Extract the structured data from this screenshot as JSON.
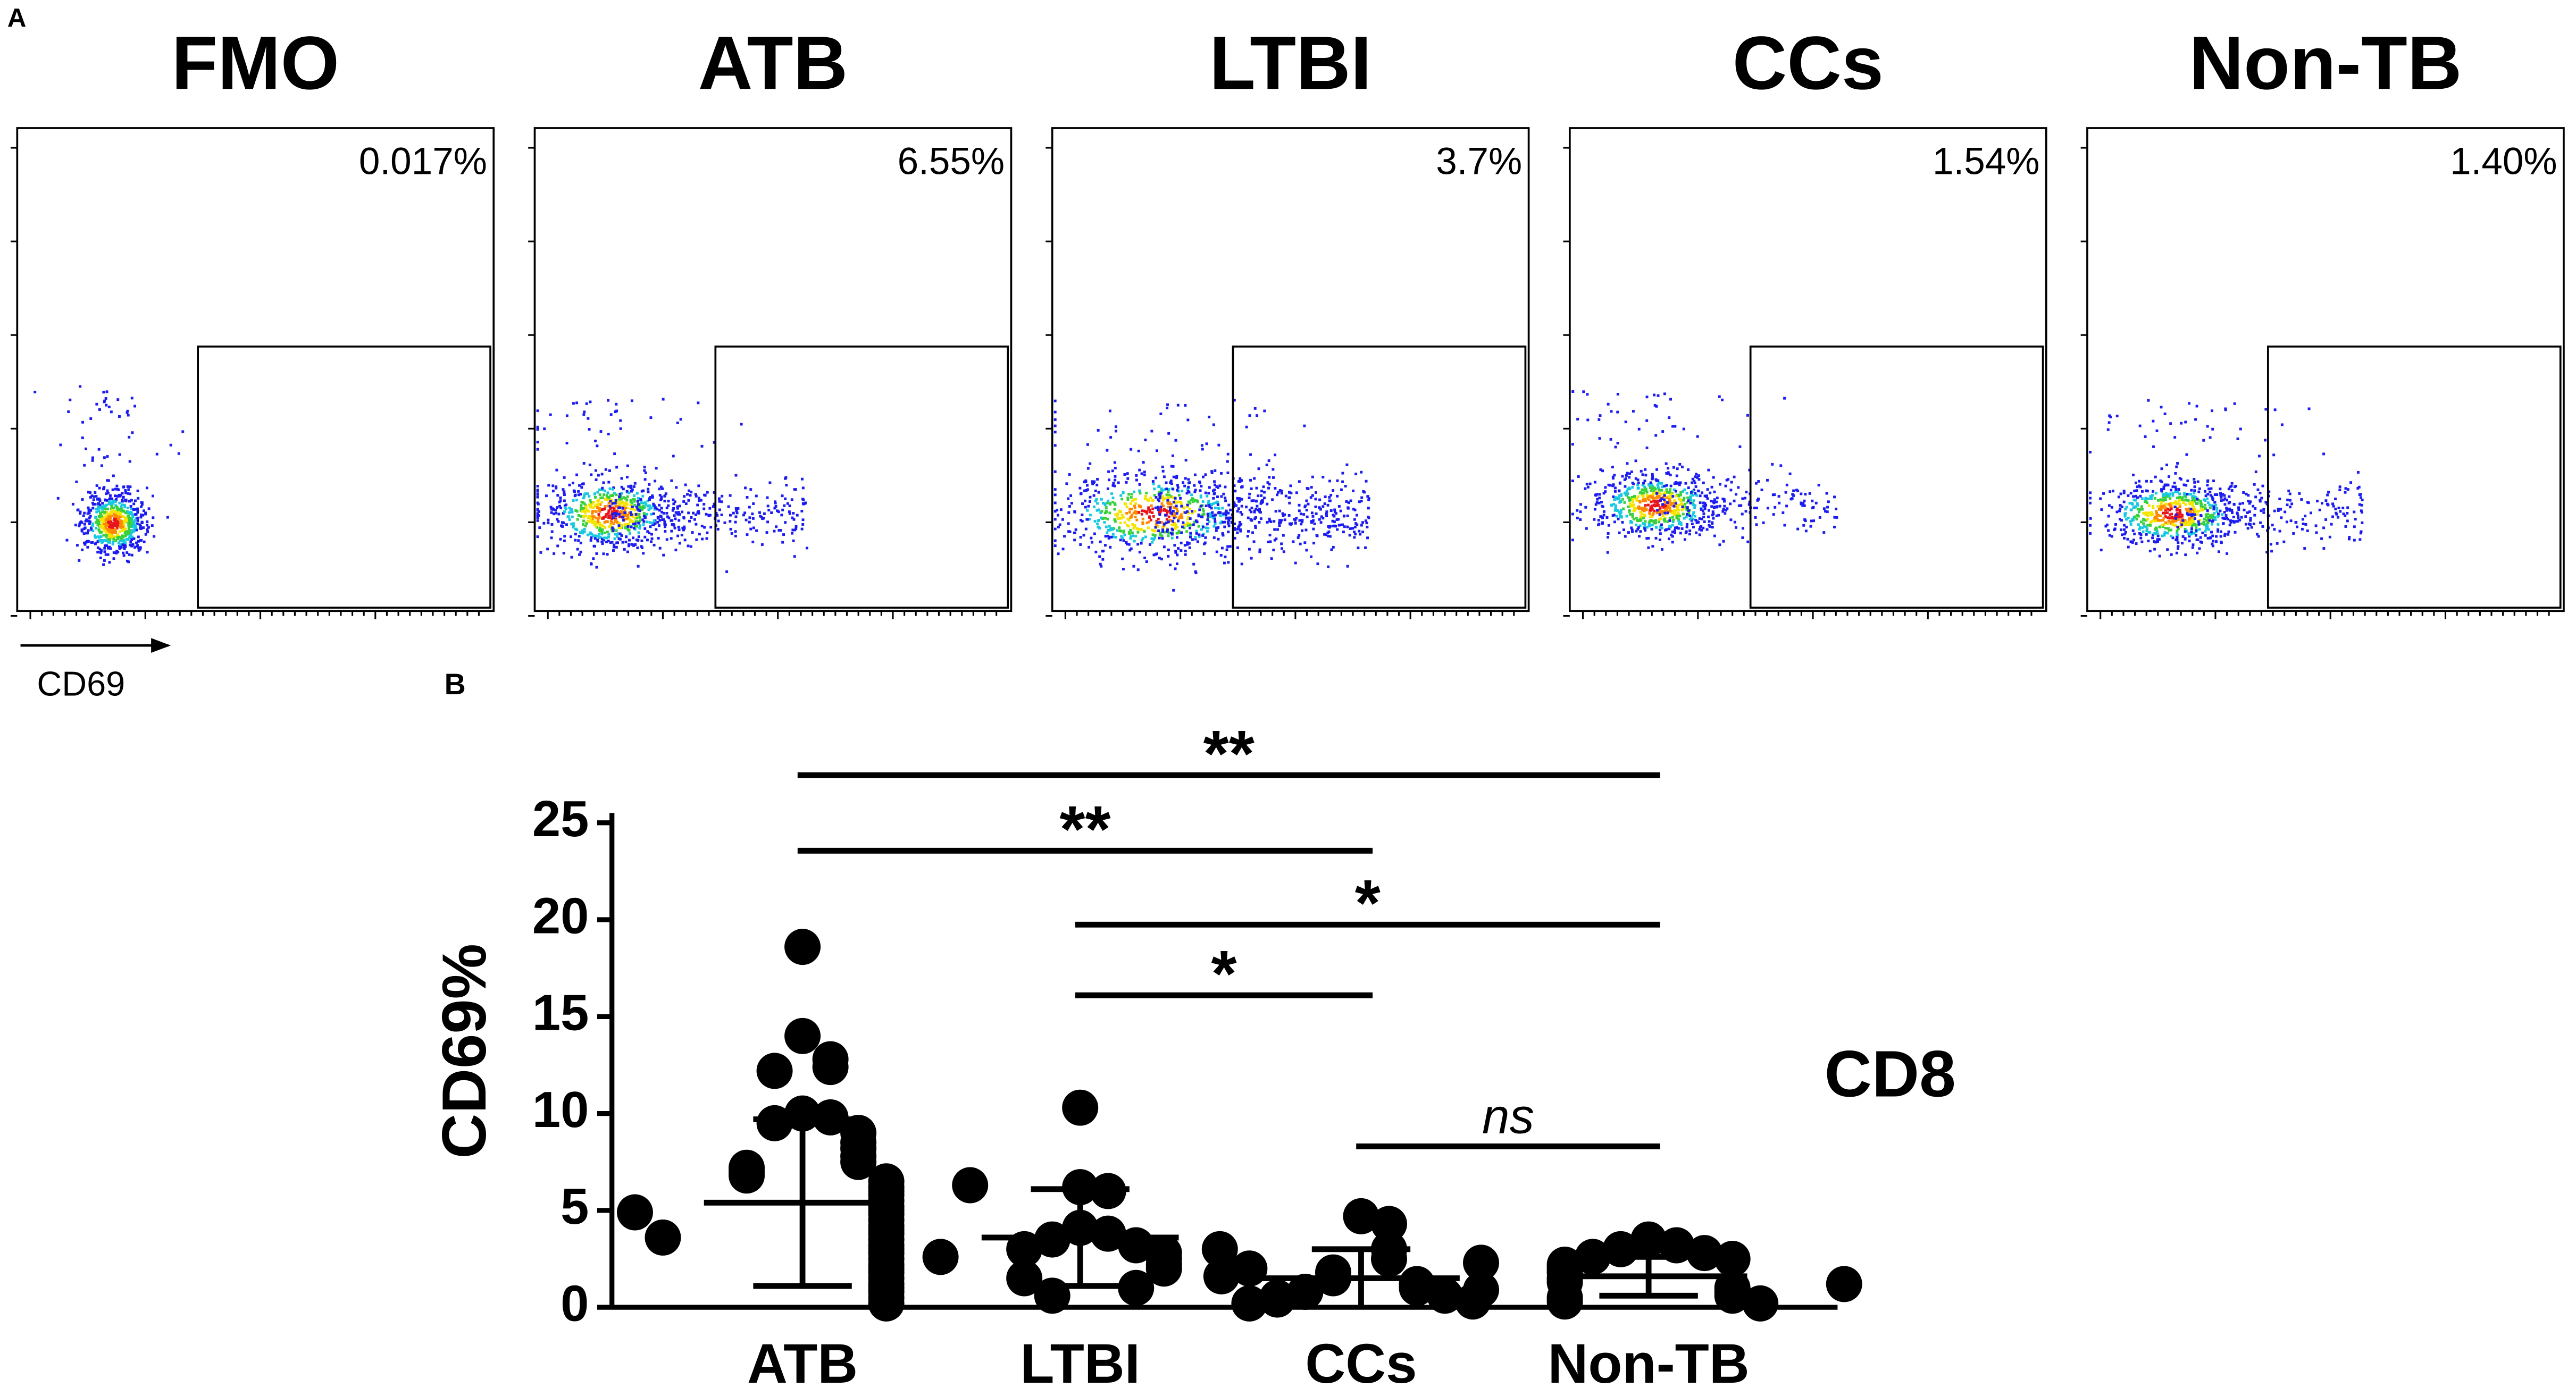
{
  "chart_data": [
    {
      "type": "flow",
      "panel_label": "A",
      "x_label": "CD69",
      "panels": [
        {
          "title": "FMO",
          "gate_label": "0.017%"
        },
        {
          "title": "ATB",
          "gate_label": "6.55%"
        },
        {
          "title": "LTBI",
          "gate_label": "3.7%"
        },
        {
          "title": "CCs",
          "gate_label": "1.54%"
        },
        {
          "title": "Non-TB",
          "gate_label": "1.40%"
        }
      ]
    },
    {
      "type": "dotplot",
      "panel_label": "B",
      "y_label": "CD69%",
      "annotation": "CD8",
      "categories": [
        "ATB",
        "LTBI",
        "CCs",
        "Non-TB"
      ],
      "ylim": [
        0,
        25
      ],
      "yticks": [
        0,
        5,
        10,
        15,
        20,
        25
      ],
      "color": "#000000",
      "groups": [
        {
          "values": [
            18.6,
            14.0,
            12.8,
            12.4,
            12.2,
            10.0,
            9.8,
            9.5,
            9.0,
            8.5,
            8.2,
            7.8,
            7.5,
            7.2,
            7.0,
            6.8,
            6.5,
            6.2,
            6.0,
            5.8,
            5.5,
            5.2,
            5.0,
            4.8,
            4.5,
            4.2,
            4.0,
            3.8,
            3.5,
            3.2,
            3.0,
            2.8,
            2.5,
            2.2,
            2.0,
            1.8,
            1.5,
            1.2,
            1.0,
            0.8,
            0.5,
            0.2,
            3.6,
            4.9,
            6.3
          ],
          "mean": 5.4,
          "sd": 4.3
        },
        {
          "values": [
            10.3,
            6.2,
            6.0,
            4.1,
            3.8,
            3.5,
            3.2,
            3.0,
            2.8,
            2.5,
            2.2,
            2.0,
            1.5,
            1.0,
            0.6,
            3.0,
            2.6
          ],
          "mean": 3.6,
          "sd": 2.5
        },
        {
          "values": [
            4.7,
            4.3,
            3.0,
            2.5,
            1.8,
            1.5,
            1.2,
            1.0,
            0.8,
            0.6,
            0.5,
            0.4,
            0.3,
            0.2,
            1.6,
            2.0
          ],
          "mean": 1.5,
          "sd": 1.5
        },
        {
          "values": [
            3.5,
            3.2,
            3.0,
            2.8,
            2.6,
            2.5,
            2.2,
            2.0,
            1.8,
            1.5,
            1.3,
            1.0,
            0.8,
            0.6,
            0.5,
            0.3,
            0.2,
            2.3,
            1.2,
            0.9
          ],
          "mean": 1.6,
          "sd": 1.0
        }
      ],
      "comparisons": [
        {
          "from": "ATB",
          "to": "Non-TB",
          "label": "**"
        },
        {
          "from": "ATB",
          "to": "CCs",
          "label": "**"
        },
        {
          "from": "LTBI",
          "to": "Non-TB",
          "label": "*"
        },
        {
          "from": "LTBI",
          "to": "CCs",
          "label": "*"
        },
        {
          "from": "CCs",
          "to": "Non-TB",
          "label": "ns",
          "label_style": "italic"
        }
      ]
    }
  ]
}
